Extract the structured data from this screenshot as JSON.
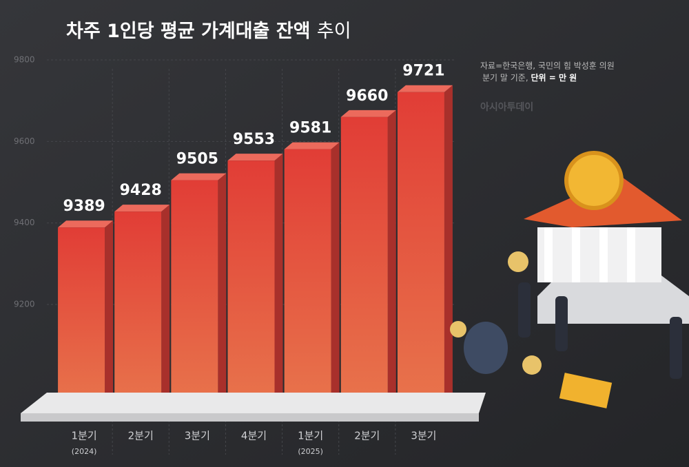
{
  "chart_data": {
    "type": "bar",
    "title": "차주 1인당 평균 가계대출 잔액",
    "title_suffix": "추이",
    "source": "자료=한국은행, 국민의 힘 박성훈 의원",
    "note": "분기 말 기준, ",
    "unit": "단위 = 만 원",
    "watermark": "아시아투데이",
    "categories": [
      "1분기",
      "2분기",
      "3분기",
      "4분기",
      "1분기",
      "2분기",
      "3분기"
    ],
    "category_years": [
      "(2024)",
      null,
      null,
      null,
      "(2025)",
      null,
      null
    ],
    "values": [
      9389,
      9428,
      9505,
      9553,
      9581,
      9660,
      9721
    ],
    "color": "#e2463b",
    "ylim": [
      8950,
      9800
    ],
    "yticks": [
      9200,
      9400,
      9600,
      9800
    ],
    "grid": true
  }
}
